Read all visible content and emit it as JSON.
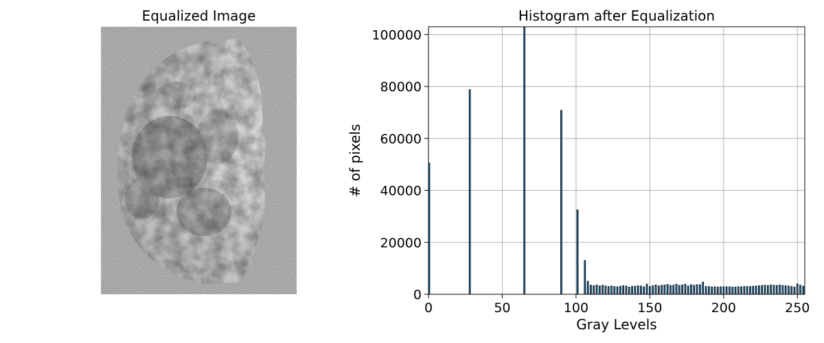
{
  "panels": {
    "image_title": "Equalized Image",
    "image_description_icon": "moon-image"
  },
  "chart_data": {
    "type": "bar",
    "title": "Histogram after Equalization",
    "xlabel": "Gray Levels",
    "ylabel": "# of pixels",
    "xlim": [
      0,
      255
    ],
    "ylim": [
      0,
      103000
    ],
    "grid": true,
    "x_ticks": [
      0,
      50,
      100,
      150,
      200,
      250
    ],
    "y_ticks": [
      0,
      20000,
      40000,
      60000,
      80000,
      100000
    ],
    "bar_color": "#1f77b4",
    "edge_color": "#000000",
    "x": [
      0,
      28,
      65,
      90,
      101,
      106,
      108,
      110,
      112,
      114,
      116,
      118,
      120,
      122,
      124,
      126,
      128,
      130,
      132,
      134,
      136,
      138,
      140,
      142,
      144,
      146,
      148,
      150,
      152,
      154,
      156,
      158,
      160,
      162,
      164,
      166,
      168,
      170,
      172,
      174,
      176,
      178,
      180,
      182,
      184,
      186,
      188,
      190,
      192,
      194,
      196,
      198,
      200,
      202,
      204,
      206,
      208,
      210,
      212,
      214,
      216,
      218,
      220,
      222,
      224,
      226,
      228,
      230,
      232,
      234,
      236,
      238,
      240,
      242,
      244,
      246,
      248,
      250,
      252,
      254
    ],
    "values": [
      50500,
      78800,
      103000,
      70800,
      32500,
      13000,
      5000,
      3500,
      3300,
      3600,
      3200,
      3500,
      3200,
      3000,
      3200,
      3000,
      2900,
      3100,
      3300,
      3200,
      2800,
      3000,
      3100,
      3300,
      3200,
      2900,
      3900,
      3000,
      3300,
      3600,
      3200,
      3500,
      3600,
      3800,
      3400,
      3500,
      3900,
      3400,
      3600,
      3900,
      3200,
      3700,
      3500,
      3700,
      3700,
      4700,
      3000,
      3000,
      2800,
      2900,
      2800,
      2900,
      2900,
      2900,
      2900,
      2800,
      2800,
      2900,
      2900,
      3000,
      3000,
      3000,
      3100,
      3200,
      3300,
      3400,
      3500,
      3400,
      3600,
      3500,
      3400,
      3600,
      3400,
      3300,
      3200,
      3000,
      2800,
      4000,
      3500,
      3100
    ]
  }
}
